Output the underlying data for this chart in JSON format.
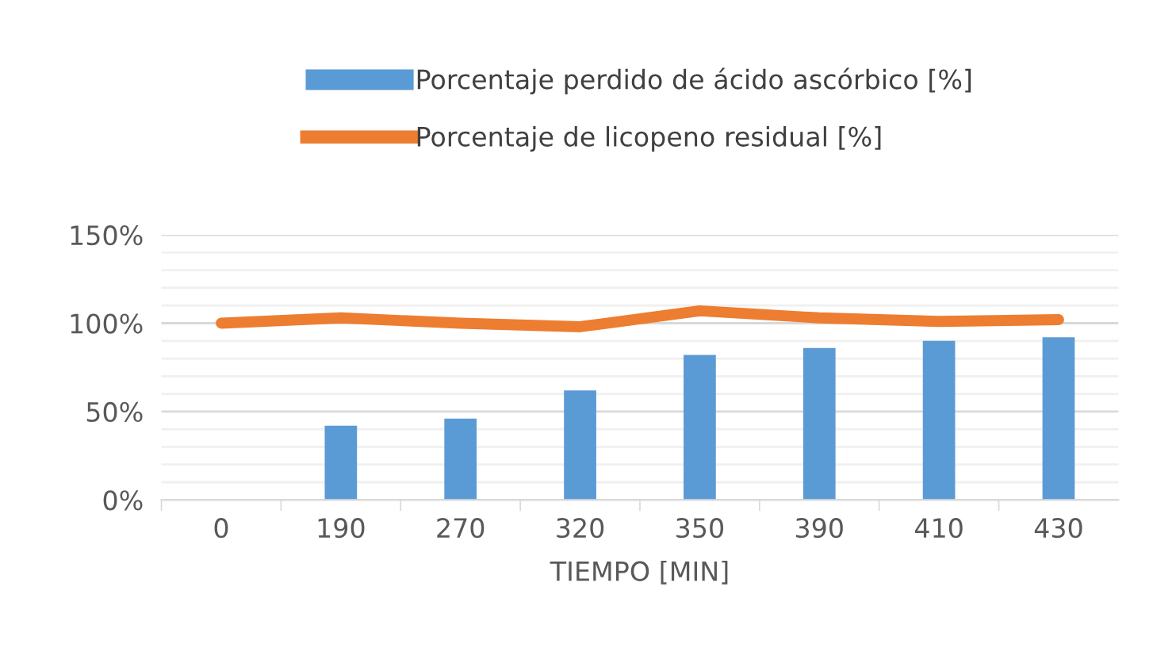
{
  "chart_data": {
    "type": "bar",
    "xlabel": "TIEMPO [MIN]",
    "categories": [
      "0",
      "190",
      "270",
      "320",
      "350",
      "390",
      "410",
      "430"
    ],
    "series": [
      {
        "name": "Porcentaje perdido de ácido ascórbico [%]",
        "color": "#5b9bd5",
        "values": [
          null,
          42,
          46,
          62,
          82,
          86,
          90,
          92
        ]
      },
      {
        "name": "Porcentaje de licopeno residual [%]",
        "type": "line",
        "color": "#ed7d31",
        "values": [
          100,
          103,
          100,
          98,
          107,
          103,
          101,
          102
        ]
      }
    ],
    "ylim": [
      0,
      150
    ],
    "yticks": [
      {
        "value": 0,
        "label": "0%"
      },
      {
        "value": 10,
        "label": null
      },
      {
        "value": 20,
        "label": null
      },
      {
        "value": 30,
        "label": null
      },
      {
        "value": 40,
        "label": null
      },
      {
        "value": 50,
        "label": "50%"
      },
      {
        "value": 60,
        "label": null
      },
      {
        "value": 70,
        "label": null
      },
      {
        "value": 80,
        "label": null
      },
      {
        "value": 90,
        "label": null
      },
      {
        "value": 100,
        "label": "100%"
      },
      {
        "value": 110,
        "label": null
      },
      {
        "value": 120,
        "label": null
      },
      {
        "value": 130,
        "label": null
      },
      {
        "value": 140,
        "label": null
      },
      {
        "value": 150,
        "label": "150%"
      }
    ],
    "grid": "y",
    "legend": "top",
    "marker": "none"
  }
}
